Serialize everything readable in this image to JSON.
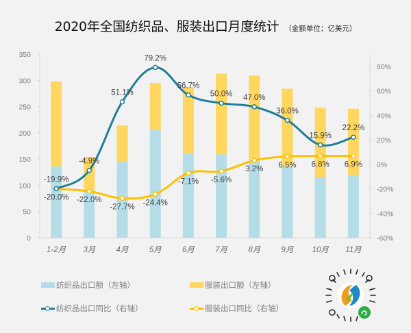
{
  "title": {
    "main": "2020年全国纺织品、服装出口月度统计",
    "unit": "（金额单位：亿美元）"
  },
  "colors": {
    "textile_bar": "#b4dde8",
    "apparel_bar": "#ffd75e",
    "textile_line": "#217d99",
    "apparel_line": "#ffc000",
    "axis": "#d9d9d9"
  },
  "legend": {
    "textile_amount": "纺织品出口额（左轴）",
    "apparel_amount": "服装出口额（左轴）",
    "textile_yoy": "纺织品出口同比（右轴）",
    "apparel_yoy": "服装出口同比（右轴）"
  },
  "qr_code": {
    "icon": "wechat-mini-program-code"
  },
  "chart_data": {
    "type": "bar",
    "title": "2020年全国纺织品、服装出口月度统计",
    "subtitle": "（金额单位：亿美元）",
    "categories": [
      "1-2月",
      "3月",
      "4月",
      "5月",
      "6月",
      "7月",
      "8月",
      "9月",
      "10月",
      "11月"
    ],
    "stacked": true,
    "y_left": {
      "ylim": [
        0,
        350
      ],
      "ticks": [
        "0",
        "50",
        "100",
        "150",
        "200",
        "250",
        "300",
        "350"
      ],
      "tick_values": [
        0,
        50,
        100,
        150,
        200,
        250,
        300,
        350
      ]
    },
    "y_right": {
      "ylim": [
        -60,
        80
      ],
      "ticks": [
        "-60%",
        "-40%",
        "-20%",
        "0%",
        "20%",
        "40%",
        "60%",
        "80%"
      ],
      "tick_values": [
        -60,
        -40,
        -20,
        0,
        20,
        40,
        60,
        80
      ]
    },
    "series": [
      {
        "name": "纺织品出口额（左轴）",
        "type": "bar",
        "axis": "left",
        "values": [
          136,
          90,
          145,
          205,
          161,
          159,
          149,
          136,
          116,
          120
        ]
      },
      {
        "name": "服装出口额（左轴）",
        "type": "bar",
        "axis": "left",
        "values": [
          162,
          64,
          69,
          90,
          126,
          154,
          160,
          148,
          132,
          126
        ]
      },
      {
        "name": "纺织品出口同比（右轴）",
        "type": "line",
        "axis": "right",
        "values": [
          -19.9,
          -4.9,
          51.1,
          79.2,
          56.7,
          50.0,
          47.0,
          36.0,
          15.9,
          22.2
        ],
        "labels": [
          "-19.9%",
          "-4.9%",
          "51.1%",
          "79.2%",
          "56.7%",
          "50.0%",
          "47.0%",
          "36.0%",
          "15.9%",
          "22.2%"
        ]
      },
      {
        "name": "服装出口同比（右轴）",
        "type": "line",
        "axis": "right",
        "values": [
          -20.0,
          -22.0,
          -27.7,
          -24.4,
          -7.1,
          -5.6,
          3.2,
          6.5,
          6.8,
          6.9
        ],
        "labels": [
          "-20.0%",
          "-22.0%",
          "-27.7%",
          "-24.4%",
          "-7.1%",
          "-5.6%",
          "3.2%",
          "6.5%",
          "6.8%",
          "6.9%"
        ]
      }
    ],
    "grid": false,
    "legend_position": "bottom"
  }
}
